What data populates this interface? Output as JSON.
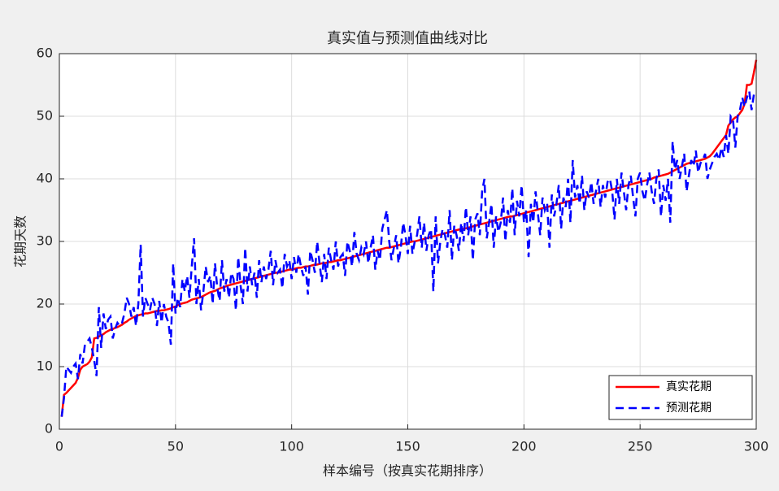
{
  "chart_data": {
    "type": "line",
    "title": "真实值与预测值曲线对比",
    "xlabel": "样本编号（按真实花期排序）",
    "ylabel": "花期天数",
    "xlim": [
      0,
      300
    ],
    "ylim": [
      0,
      60
    ],
    "xticks": [
      0,
      50,
      100,
      150,
      200,
      250,
      300
    ],
    "yticks": [
      0,
      10,
      20,
      30,
      40,
      50,
      60
    ],
    "grid": true,
    "legend_position": "southeast",
    "x": [
      1,
      2,
      3,
      4,
      5,
      6,
      7,
      8,
      9,
      10,
      11,
      12,
      13,
      14,
      15,
      16,
      17,
      18,
      19,
      20,
      21,
      22,
      23,
      24,
      25,
      26,
      27,
      28,
      29,
      30,
      31,
      32,
      33,
      34,
      35,
      36,
      37,
      38,
      39,
      40,
      41,
      42,
      43,
      44,
      45,
      46,
      47,
      48,
      49,
      50,
      51,
      52,
      53,
      54,
      55,
      56,
      57,
      58,
      59,
      60,
      61,
      62,
      63,
      64,
      65,
      66,
      67,
      68,
      69,
      70,
      71,
      72,
      73,
      74,
      75,
      76,
      77,
      78,
      79,
      80,
      81,
      82,
      83,
      84,
      85,
      86,
      87,
      88,
      89,
      90,
      91,
      92,
      93,
      94,
      95,
      96,
      97,
      98,
      99,
      100,
      101,
      102,
      103,
      104,
      105,
      106,
      107,
      108,
      109,
      110,
      111,
      112,
      113,
      114,
      115,
      116,
      117,
      118,
      119,
      120,
      121,
      122,
      123,
      124,
      125,
      126,
      127,
      128,
      129,
      130,
      131,
      132,
      133,
      134,
      135,
      136,
      137,
      138,
      139,
      140,
      141,
      142,
      143,
      144,
      145,
      146,
      147,
      148,
      149,
      150,
      151,
      152,
      153,
      154,
      155,
      156,
      157,
      158,
      159,
      160,
      161,
      162,
      163,
      164,
      165,
      166,
      167,
      168,
      169,
      170,
      171,
      172,
      173,
      174,
      175,
      176,
      177,
      178,
      179,
      180,
      181,
      182,
      183,
      184,
      185,
      186,
      187,
      188,
      189,
      190,
      191,
      192,
      193,
      194,
      195,
      196,
      197,
      198,
      199,
      200,
      201,
      202,
      203,
      204,
      205,
      206,
      207,
      208,
      209,
      210,
      211,
      212,
      213,
      214,
      215,
      216,
      217,
      218,
      219,
      220,
      221,
      222,
      223,
      224,
      225,
      226,
      227,
      228,
      229,
      230,
      231,
      232,
      233,
      234,
      235,
      236,
      237,
      238,
      239,
      240,
      241,
      242,
      243,
      244,
      245,
      246,
      247,
      248,
      249,
      250,
      251,
      252,
      253,
      254,
      255,
      256,
      257,
      258,
      259,
      260,
      261,
      262,
      263,
      264,
      265,
      266,
      267,
      268,
      269,
      270,
      271,
      272,
      273,
      274,
      275,
      276,
      277,
      278,
      279,
      280,
      281,
      282,
      283,
      284,
      285,
      286,
      287,
      288,
      289,
      290,
      291,
      292,
      293,
      294,
      295,
      296,
      297,
      298,
      299,
      300
    ],
    "series": [
      {
        "name": "真实花期",
        "color": "#ff0000",
        "style": "solid",
        "values": [
          2.0,
          5.5,
          5.8,
          6.2,
          6.6,
          7.0,
          7.4,
          8.2,
          9.5,
          10.0,
          10.2,
          10.4,
          10.8,
          11.5,
          14.5,
          14.6,
          14.8,
          15.0,
          15.2,
          15.5,
          15.7,
          15.9,
          16.0,
          16.2,
          16.3,
          16.5,
          16.7,
          17.0,
          17.2,
          17.5,
          17.7,
          17.9,
          18.1,
          18.2,
          18.3,
          18.4,
          18.5,
          18.5,
          18.6,
          18.7,
          18.8,
          18.9,
          18.9,
          19.0,
          19.0,
          19.1,
          19.2,
          19.3,
          19.5,
          19.6,
          19.8,
          20.0,
          20.1,
          20.2,
          20.3,
          20.5,
          20.7,
          20.8,
          20.9,
          21.0,
          21.1,
          21.3,
          21.5,
          21.7,
          21.9,
          22.0,
          22.1,
          22.3,
          22.5,
          22.6,
          22.7,
          22.9,
          23.0,
          23.1,
          23.2,
          23.3,
          23.4,
          23.5,
          23.6,
          23.7,
          23.8,
          23.9,
          24.0,
          24.1,
          24.2,
          24.3,
          24.4,
          24.5,
          24.6,
          24.7,
          24.8,
          24.9,
          25.0,
          25.0,
          25.1,
          25.2,
          25.3,
          25.4,
          25.5,
          25.5,
          25.6,
          25.7,
          25.8,
          25.8,
          25.9,
          26.0,
          26.0,
          26.1,
          26.2,
          26.3,
          26.3,
          26.4,
          26.5,
          26.5,
          26.6,
          26.7,
          26.7,
          26.8,
          26.9,
          27.0,
          27.0,
          27.1,
          27.2,
          27.3,
          27.4,
          27.5,
          27.6,
          27.7,
          27.8,
          27.9,
          28.0,
          28.1,
          28.2,
          28.3,
          28.4,
          28.5,
          28.6,
          28.7,
          28.8,
          28.9,
          29.0,
          29.0,
          29.1,
          29.2,
          29.3,
          29.4,
          29.5,
          29.6,
          29.7,
          29.8,
          29.9,
          30.0,
          30.0,
          30.1,
          30.2,
          30.3,
          30.4,
          30.5,
          30.6,
          30.7,
          30.8,
          30.9,
          31.0,
          31.1,
          31.2,
          31.3,
          31.4,
          31.5,
          31.6,
          31.7,
          31.8,
          31.9,
          32.0,
          32.0,
          32.1,
          32.2,
          32.3,
          32.4,
          32.5,
          32.6,
          32.7,
          32.8,
          32.9,
          33.0,
          33.1,
          33.2,
          33.3,
          33.4,
          33.5,
          33.6,
          33.7,
          33.8,
          33.9,
          34.0,
          34.0,
          34.1,
          34.2,
          34.3,
          34.4,
          34.5,
          34.6,
          34.7,
          34.8,
          34.9,
          35.0,
          35.1,
          35.2,
          35.3,
          35.4,
          35.5,
          35.6,
          35.7,
          35.8,
          35.9,
          36.0,
          36.1,
          36.2,
          36.3,
          36.4,
          36.5,
          36.6,
          36.7,
          36.8,
          36.9,
          37.0,
          37.1,
          37.2,
          37.3,
          37.4,
          37.5,
          37.6,
          37.7,
          37.8,
          37.9,
          38.0,
          38.1,
          38.2,
          38.3,
          38.4,
          38.5,
          38.6,
          38.7,
          38.8,
          38.9,
          39.0,
          39.1,
          39.2,
          39.3,
          39.4,
          39.5,
          39.6,
          39.7,
          39.8,
          39.9,
          40.0,
          40.2,
          40.3,
          40.4,
          40.5,
          40.6,
          40.7,
          40.8,
          41.0,
          41.2,
          41.4,
          41.6,
          41.8,
          42.0,
          42.2,
          42.4,
          42.5,
          42.6,
          42.7,
          42.8,
          42.9,
          43.0,
          43.1,
          43.2,
          43.4,
          43.6,
          44.0,
          44.5,
          45.0,
          45.5,
          46.0,
          46.5,
          47.0,
          48.5,
          49.0,
          49.5,
          49.8,
          50.0,
          50.5,
          51.0,
          52.0,
          55.0,
          55.0,
          55.2,
          57.0,
          59.0
        ]
      },
      {
        "name": "预测花期",
        "color": "#0000ff",
        "style": "dashed",
        "values": [
          2,
          5,
          10,
          9.5,
          9,
          10,
          10.5,
          8,
          12,
          10.5,
          13.5,
          14,
          14.5,
          13,
          11,
          8.5,
          19.5,
          13,
          18.5,
          16,
          17.5,
          18,
          14.5,
          16,
          17,
          16.5,
          17,
          18.5,
          21,
          20,
          18,
          19.5,
          16.5,
          20,
          29.5,
          18,
          21,
          20,
          19,
          21,
          20,
          16.5,
          20.5,
          17,
          20,
          18,
          17,
          13.5,
          26.5,
          18.5,
          21,
          19.5,
          24,
          22,
          24.5,
          21,
          26,
          30.5,
          20,
          24,
          19,
          22,
          26,
          23.5,
          24.5,
          20,
          26.5,
          22.5,
          20.5,
          27,
          22,
          24,
          21,
          25,
          24,
          19,
          27.5,
          23,
          20,
          29,
          22,
          26,
          23,
          25,
          21,
          27,
          23.5,
          26,
          24,
          25.5,
          28.5,
          23,
          27,
          25,
          25.5,
          22.5,
          28,
          26,
          27,
          24,
          27.5,
          25,
          28,
          26,
          24.5,
          26,
          21.5,
          28.5,
          27,
          25,
          30,
          26.5,
          23.5,
          28,
          24,
          29,
          27,
          25.5,
          30,
          26,
          27.5,
          28,
          24.5,
          30,
          28.5,
          26,
          31.5,
          28,
          27,
          29,
          28,
          30,
          26.5,
          29,
          31,
          25.5,
          28.5,
          27,
          32,
          33.5,
          35,
          30,
          27,
          29,
          31,
          26.5,
          29,
          33,
          31,
          28,
          32.5,
          28,
          30,
          31,
          34,
          29,
          33,
          28.5,
          31,
          32,
          22,
          34,
          26.5,
          30,
          32,
          31,
          29,
          35,
          27,
          32.5,
          31,
          28.5,
          33,
          30,
          35.5,
          31,
          34,
          27,
          33.5,
          34.5,
          31,
          38,
          40,
          30.5,
          33,
          36,
          29,
          34,
          31.5,
          33,
          37,
          30,
          35,
          33,
          38.5,
          31,
          36.5,
          34,
          39,
          33,
          35,
          27.5,
          36,
          33,
          38,
          34.5,
          31,
          37,
          35,
          36,
          29,
          37.5,
          34,
          36,
          39,
          32,
          37,
          35.5,
          40,
          33,
          43,
          37,
          39,
          36,
          40.5,
          35,
          38,
          37,
          39.5,
          36,
          38,
          40,
          35.5,
          39,
          37,
          39.5,
          40,
          38,
          33.5,
          40,
          36,
          41,
          38,
          35,
          39,
          40.5,
          37,
          34,
          40,
          41,
          38,
          36.5,
          39,
          41,
          38,
          36,
          40,
          41.5,
          34,
          39,
          36.5,
          40,
          33,
          46,
          41.5,
          43,
          40,
          42,
          44,
          38,
          40.5,
          43,
          42,
          44.5,
          41,
          42.5,
          43,
          44,
          40,
          41.5,
          42.5,
          43.5,
          44,
          43,
          45,
          43.5,
          47,
          44,
          50,
          49.5,
          45,
          50,
          51,
          53,
          51.5,
          53,
          54,
          51,
          53.5,
          54
        ]
      }
    ]
  }
}
